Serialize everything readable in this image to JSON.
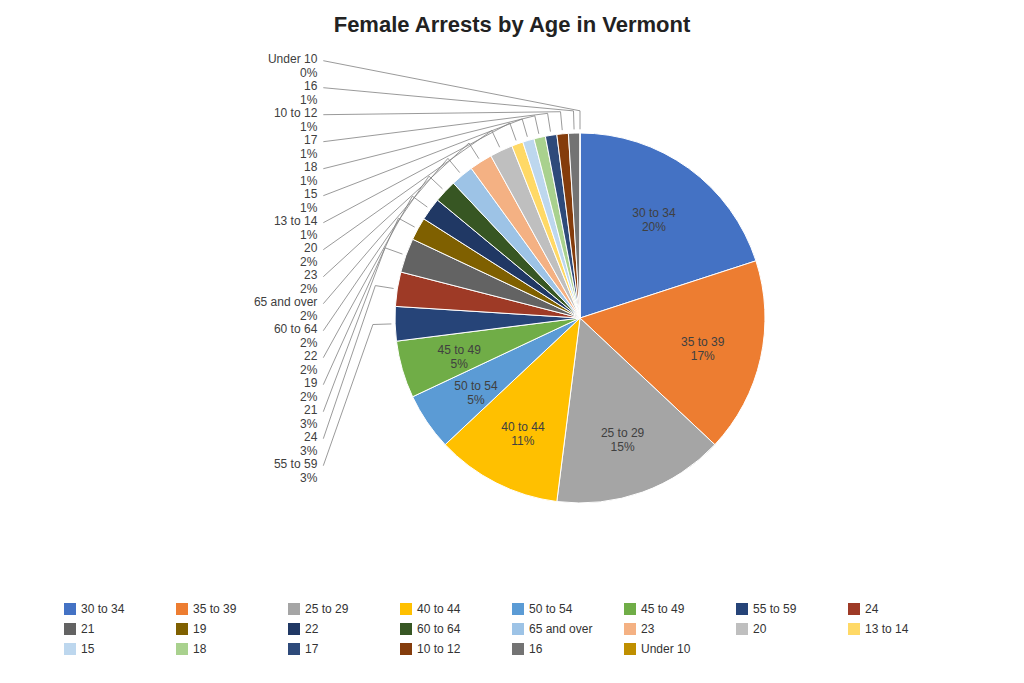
{
  "chart_data": {
    "type": "pie",
    "title": "Female Arrests by Age in Vermont",
    "categories": [
      "30 to 34",
      "35 to 39",
      "25 to 29",
      "40 to 44",
      "50 to 54",
      "45 to 49",
      "55 to 59",
      "24",
      "21",
      "19",
      "22",
      "60 to 64",
      "65 and over",
      "23",
      "20",
      "13 to 14",
      "15",
      "18",
      "17",
      "10 to 12",
      "16",
      "Under 10"
    ],
    "values": [
      20,
      17,
      15,
      11,
      5,
      5,
      3,
      3,
      3,
      2,
      2,
      2,
      2,
      2,
      2,
      1,
      1,
      1,
      1,
      1,
      1,
      0
    ],
    "value_labels": [
      "20%",
      "17%",
      "15%",
      "11%",
      "5%",
      "5%",
      "3%",
      "3%",
      "3%",
      "2%",
      "2%",
      "2%",
      "2%",
      "2%",
      "2%",
      "1%",
      "1%",
      "1%",
      "1%",
      "1%",
      "1%",
      "0%"
    ],
    "colors": [
      "#4472C4",
      "#ED7D31",
      "#A5A5A5",
      "#FFC000",
      "#5B9BD5",
      "#70AD47",
      "#264478",
      "#9E3A26",
      "#636363",
      "#7F6000",
      "#203864",
      "#375623",
      "#9DC3E6",
      "#F4B183",
      "#BFBFBF",
      "#FFD966",
      "#BDD7EE",
      "#A9D18E",
      "#2E4A7A",
      "#843C0C",
      "#737373",
      "#BF8F00"
    ],
    "data_labels": true,
    "legend": "bottom"
  }
}
